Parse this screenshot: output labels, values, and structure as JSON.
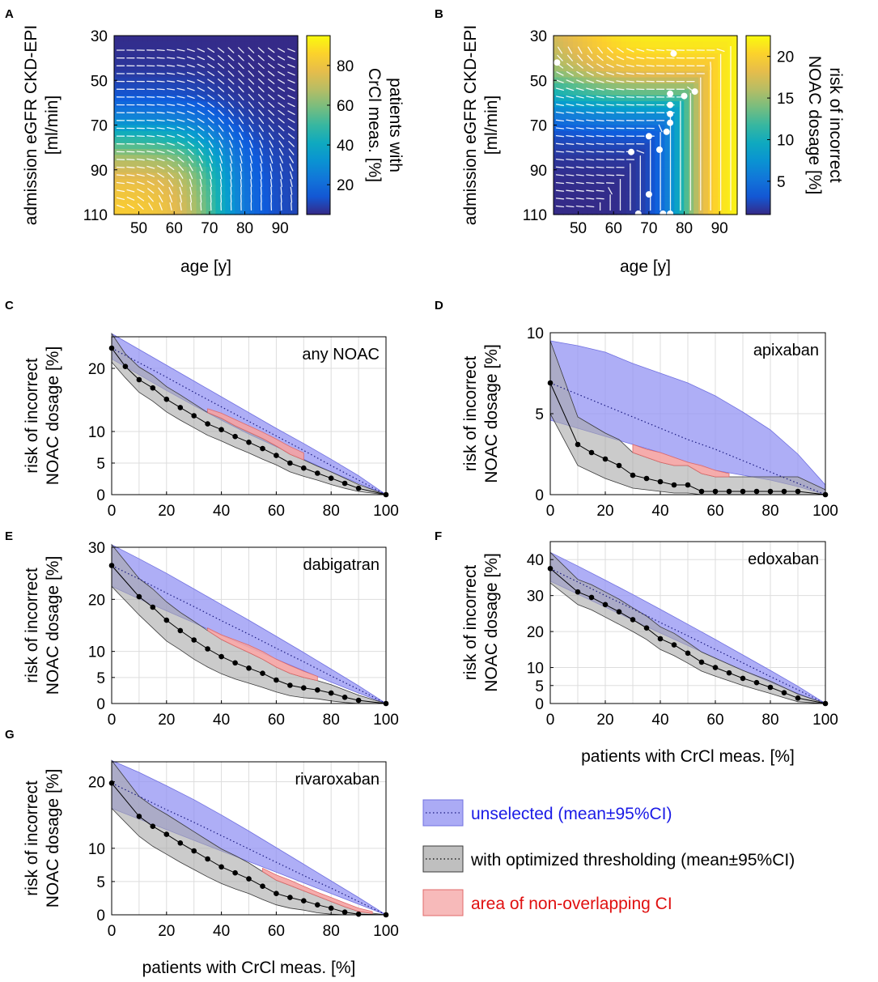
{
  "colors": {
    "unselected_fill": "#8f8ff2",
    "unselected_edge": "#7070e0",
    "optimized_fill": "#a9a9a9",
    "optimized_edge": "#3a3a3a",
    "nonoverlap_fill": "#f4a3a3",
    "nonoverlap_edge": "#e06a6a",
    "legend_unselected_text": "#1a1ae6",
    "legend_nonoverlap_text": "#e01010",
    "grid": "#dddddd",
    "contour": "#ffffff"
  },
  "legend": {
    "unselected": "unselected (mean±95%CI)",
    "optimized": "with optimized thresholding (mean±95%CI)",
    "nonoverlap": "area of non-overlapping CI"
  },
  "chart_data": [
    {
      "id": "A",
      "panel_letter": "A",
      "type": "heatmap",
      "title": "",
      "xlabel": "age [y]",
      "ylabel_lines": [
        "admission eGFR CKD-EPI",
        "[ml/min]"
      ],
      "colorbar_label_lines": [
        "patients with",
        "CrCl meas. [%]"
      ],
      "xlim": [
        43,
        95
      ],
      "ylim": [
        110,
        30
      ],
      "xticks": [
        50,
        60,
        70,
        80,
        90
      ],
      "yticks": [
        30,
        50,
        70,
        90,
        110
      ],
      "cbar_range": [
        5,
        95
      ],
      "cbar_ticks": [
        20,
        40,
        60,
        80
      ],
      "description_values": {
        "low_age_high_egfr": 90,
        "high_age_low_egfr": 8,
        "transition_age": 75,
        "transition_egfr": 75
      }
    },
    {
      "id": "B",
      "panel_letter": "B",
      "type": "heatmap",
      "title": "",
      "xlabel": "age [y]",
      "ylabel_lines": [
        "admission eGFR CKD-EPI",
        "[ml/min]"
      ],
      "colorbar_label_lines": [
        "risk of incorrect",
        "NOAC dosage [%]"
      ],
      "xlim": [
        43,
        95
      ],
      "ylim": [
        110,
        30
      ],
      "xticks": [
        50,
        60,
        70,
        80,
        90
      ],
      "yticks": [
        30,
        50,
        70,
        90,
        110
      ],
      "cbar_range": [
        1,
        22.5
      ],
      "cbar_ticks": [
        5,
        10,
        15,
        20
      ],
      "threshold_points": [
        [
          44,
          42
        ],
        [
          77,
          38
        ],
        [
          76,
          56
        ],
        [
          80,
          57
        ],
        [
          83,
          55
        ],
        [
          76,
          61
        ],
        [
          76,
          65
        ],
        [
          76,
          69
        ],
        [
          75,
          73
        ],
        [
          70,
          75
        ],
        [
          73,
          81
        ],
        [
          65,
          82
        ],
        [
          70,
          101
        ],
        [
          67,
          110
        ],
        [
          76,
          110
        ],
        [
          74,
          110
        ]
      ]
    },
    {
      "id": "C",
      "panel_letter": "C",
      "type": "line",
      "title": "any NOAC",
      "ylabel_lines": [
        "risk of incorrect",
        "NOAC dosage [%]"
      ],
      "xlabel": "",
      "xlim": [
        0,
        100
      ],
      "ylim": [
        0,
        25
      ],
      "xticks": [
        0,
        20,
        40,
        60,
        80,
        100
      ],
      "yticks": [
        0,
        5,
        10,
        20
      ],
      "x": [
        0,
        10,
        20,
        30,
        40,
        50,
        60,
        70,
        80,
        90,
        100
      ],
      "unselected_mean": [
        23.2,
        20.9,
        18.6,
        16.2,
        13.9,
        11.6,
        9.3,
        7.0,
        4.6,
        2.3,
        0
      ],
      "unselected_lower": [
        21.5,
        19.0,
        16.5,
        14.1,
        11.8,
        9.6,
        7.6,
        5.6,
        3.6,
        1.8,
        0
      ],
      "unselected_upper": [
        25.5,
        23.0,
        20.5,
        18.0,
        15.5,
        13.0,
        10.5,
        8.1,
        5.6,
        3.0,
        0
      ],
      "optimized_x": [
        0,
        5,
        10,
        15,
        20,
        25,
        30,
        35,
        40,
        45,
        50,
        55,
        60,
        65,
        70,
        75,
        80,
        85,
        90,
        100
      ],
      "optimized_mean": [
        23.2,
        20.3,
        18.2,
        16.9,
        15.1,
        13.8,
        12.5,
        11.2,
        10.3,
        9.2,
        8.3,
        7.3,
        6.2,
        5.0,
        4.2,
        3.4,
        2.6,
        1.8,
        1.0,
        0
      ],
      "optimized_lower": [
        21.0,
        18.5,
        16.2,
        14.8,
        13.1,
        11.8,
        10.6,
        9.4,
        8.5,
        7.5,
        6.6,
        5.6,
        4.7,
        3.6,
        2.9,
        2.3,
        1.6,
        1.0,
        0.5,
        0
      ],
      "optimized_upper": [
        25.5,
        22.3,
        20.2,
        18.9,
        17.1,
        15.8,
        14.4,
        13.0,
        12.1,
        10.9,
        9.9,
        8.9,
        7.7,
        6.4,
        5.5,
        4.5,
        3.6,
        2.6,
        1.6,
        0
      ],
      "nonoverlap_x": [
        35,
        40,
        45,
        50,
        55,
        60,
        65,
        70
      ],
      "nonoverlap_lower": [
        13.0,
        12.1,
        10.9,
        9.9,
        8.9,
        7.7,
        6.4,
        5.5
      ],
      "nonoverlap_upper": [
        13.6,
        12.9,
        11.9,
        10.9,
        9.9,
        8.8,
        7.6,
        6.6
      ]
    },
    {
      "id": "D",
      "panel_letter": "D",
      "type": "line",
      "title": "apixaban",
      "ylabel_lines": [
        "risk of incorrect",
        "NOAC dosage [%]"
      ],
      "xlabel": "",
      "xlim": [
        0,
        100
      ],
      "ylim": [
        0,
        10
      ],
      "xticks": [
        0,
        20,
        40,
        60,
        80,
        100
      ],
      "yticks": [
        0,
        5,
        10
      ],
      "x": [
        0,
        10,
        20,
        30,
        40,
        50,
        60,
        70,
        80,
        90,
        100
      ],
      "unselected_mean": [
        6.9,
        6.2,
        5.5,
        4.8,
        4.1,
        3.4,
        2.8,
        2.1,
        1.4,
        0.7,
        0
      ],
      "unselected_lower": [
        4.6,
        4.1,
        3.6,
        3.1,
        2.6,
        2.0,
        1.5,
        1.2,
        0.9,
        0.5,
        0
      ],
      "unselected_upper": [
        9.5,
        9.2,
        8.8,
        8.1,
        7.5,
        6.9,
        6.1,
        5.1,
        4.0,
        2.5,
        0.6
      ],
      "optimized_x": [
        0,
        10,
        15,
        20,
        25,
        30,
        35,
        40,
        45,
        50,
        55,
        60,
        65,
        70,
        75,
        80,
        85,
        90,
        100
      ],
      "optimized_mean": [
        6.9,
        3.1,
        2.6,
        2.2,
        1.8,
        1.2,
        1.0,
        0.8,
        0.6,
        0.6,
        0.2,
        0.2,
        0.2,
        0.2,
        0.2,
        0.2,
        0.2,
        0.2,
        0
      ],
      "optimized_lower": [
        5.0,
        1.8,
        1.4,
        1.0,
        0.7,
        0.4,
        0.3,
        0.2,
        0.1,
        0.1,
        0.0,
        0.0,
        0.0,
        0.0,
        0.0,
        0.0,
        0.0,
        0.0,
        0
      ],
      "optimized_upper": [
        9.5,
        4.8,
        4.3,
        3.8,
        3.4,
        2.6,
        2.3,
        2.0,
        1.8,
        1.8,
        1.3,
        1.1,
        1.1,
        1.1,
        1.1,
        1.1,
        1.1,
        1.1,
        0.3
      ],
      "nonoverlap_x": [
        30,
        35,
        40,
        45,
        50,
        55,
        60,
        65
      ],
      "nonoverlap_lower": [
        2.6,
        2.3,
        2.0,
        1.8,
        1.8,
        1.3,
        1.1,
        1.1
      ],
      "nonoverlap_upper": [
        3.1,
        2.8,
        2.6,
        2.3,
        2.0,
        1.8,
        1.5,
        1.3
      ]
    },
    {
      "id": "E",
      "panel_letter": "E",
      "type": "line",
      "title": "dabigatran",
      "ylabel_lines": [
        "risk of incorrect",
        "NOAC dosage [%]"
      ],
      "xlabel": "",
      "xlim": [
        0,
        100
      ],
      "ylim": [
        0,
        30
      ],
      "xticks": [
        0,
        20,
        40,
        60,
        80,
        100
      ],
      "yticks": [
        0,
        5,
        10,
        20,
        30
      ],
      "x": [
        0,
        10,
        20,
        30,
        40,
        50,
        60,
        70,
        80,
        90,
        100
      ],
      "unselected_mean": [
        26.5,
        23.9,
        21.2,
        18.6,
        15.9,
        13.3,
        10.6,
        8.0,
        5.3,
        2.7,
        0
      ],
      "unselected_lower": [
        22.5,
        20.1,
        17.8,
        15.5,
        13.1,
        10.8,
        8.5,
        6.3,
        4.1,
        2.0,
        0
      ],
      "unselected_upper": [
        30.5,
        27.8,
        25.0,
        22.0,
        19.0,
        16.0,
        12.9,
        9.8,
        6.6,
        3.4,
        0
      ],
      "optimized_x": [
        0,
        10,
        15,
        20,
        25,
        30,
        35,
        40,
        45,
        50,
        55,
        60,
        65,
        70,
        75,
        80,
        85,
        90,
        100
      ],
      "optimized_mean": [
        26.5,
        20.5,
        18.5,
        16.0,
        14.0,
        12.2,
        10.5,
        9.0,
        7.8,
        6.8,
        5.8,
        4.5,
        3.5,
        3.0,
        2.6,
        2.0,
        1.2,
        0.6,
        0
      ],
      "optimized_lower": [
        22.5,
        17.0,
        14.5,
        12.0,
        10.3,
        8.5,
        7.0,
        5.7,
        4.7,
        3.9,
        3.1,
        2.2,
        1.5,
        1.1,
        0.9,
        0.5,
        0.2,
        0.0,
        0
      ],
      "optimized_upper": [
        30.5,
        24.0,
        22.0,
        19.5,
        17.5,
        15.8,
        14.0,
        12.3,
        11.0,
        9.8,
        8.5,
        7.0,
        5.8,
        5.0,
        4.4,
        3.6,
        2.6,
        1.6,
        0
      ],
      "nonoverlap_x": [
        35,
        40,
        45,
        50,
        55,
        60,
        65,
        70,
        75
      ],
      "nonoverlap_lower": [
        14.0,
        12.3,
        11.0,
        9.8,
        8.5,
        7.0,
        5.8,
        5.0,
        4.4
      ],
      "nonoverlap_upper": [
        14.5,
        13.2,
        12.2,
        11.2,
        10.0,
        8.5,
        7.3,
        6.2,
        5.2
      ]
    },
    {
      "id": "F",
      "panel_letter": "F",
      "type": "line",
      "title": "edoxaban",
      "ylabel_lines": [
        "risk of incorrect",
        "NOAC dosage [%]"
      ],
      "xlabel": "patients with CrCl meas. [%]",
      "xlim": [
        0,
        100
      ],
      "ylim": [
        0,
        45
      ],
      "xticks": [
        0,
        20,
        40,
        60,
        80,
        100
      ],
      "yticks": [
        0,
        5,
        10,
        20,
        30,
        40
      ],
      "x": [
        0,
        10,
        20,
        30,
        40,
        50,
        60,
        70,
        80,
        90,
        100
      ],
      "unselected_mean": [
        37.5,
        33.8,
        30.0,
        26.3,
        22.5,
        18.8,
        15.0,
        11.3,
        7.5,
        3.8,
        0
      ],
      "unselected_lower": [
        34.0,
        30.4,
        26.8,
        23.2,
        19.6,
        16.1,
        12.6,
        9.2,
        5.9,
        2.8,
        0
      ],
      "unselected_upper": [
        42.0,
        38.2,
        34.3,
        30.3,
        26.2,
        22.0,
        17.8,
        13.5,
        9.2,
        4.8,
        0
      ],
      "optimized_x": [
        0,
        10,
        15,
        20,
        25,
        30,
        35,
        40,
        45,
        50,
        55,
        60,
        65,
        70,
        75,
        80,
        85,
        90,
        100
      ],
      "optimized_mean": [
        37.5,
        31.0,
        29.5,
        27.5,
        25.5,
        23.3,
        21.0,
        18.0,
        16.3,
        14.0,
        11.5,
        10.0,
        8.5,
        7.0,
        5.8,
        4.5,
        3.0,
        1.5,
        0
      ],
      "optimized_lower": [
        33.5,
        27.5,
        26.0,
        24.0,
        22.0,
        20.0,
        17.8,
        15.0,
        13.3,
        11.2,
        9.0,
        7.6,
        6.3,
        5.0,
        3.9,
        2.8,
        1.6,
        0.5,
        0
      ],
      "optimized_upper": [
        42.0,
        34.5,
        33.0,
        31.0,
        29.0,
        26.6,
        24.3,
        21.3,
        19.5,
        17.0,
        14.3,
        12.6,
        10.9,
        9.2,
        7.7,
        6.2,
        4.4,
        2.6,
        0
      ]
    },
    {
      "id": "G",
      "panel_letter": "G",
      "type": "line",
      "title": "rivaroxaban",
      "ylabel_lines": [
        "risk of incorrect",
        "NOAC dosage [%]"
      ],
      "xlabel": "patients with CrCl meas. [%]",
      "xlim": [
        0,
        100
      ],
      "ylim": [
        0,
        23
      ],
      "xticks": [
        0,
        20,
        40,
        60,
        80,
        100
      ],
      "yticks": [
        0,
        5,
        10,
        20
      ],
      "x": [
        0,
        10,
        20,
        30,
        40,
        50,
        60,
        70,
        80,
        90,
        100
      ],
      "unselected_mean": [
        19.8,
        17.8,
        15.8,
        13.9,
        11.9,
        9.9,
        7.9,
        5.9,
        4.0,
        2.0,
        0
      ],
      "unselected_lower": [
        16.0,
        14.4,
        12.8,
        11.2,
        9.6,
        8.0,
        6.4,
        4.8,
        3.2,
        1.6,
        0
      ],
      "unselected_upper": [
        23.2,
        21.4,
        19.4,
        17.3,
        15.0,
        12.6,
        10.1,
        7.6,
        5.1,
        2.6,
        0
      ],
      "optimized_x": [
        0,
        10,
        15,
        20,
        25,
        30,
        35,
        40,
        45,
        50,
        55,
        60,
        65,
        70,
        75,
        80,
        85,
        90,
        100
      ],
      "optimized_mean": [
        19.8,
        14.8,
        13.3,
        12.1,
        10.8,
        9.6,
        8.4,
        7.2,
        6.3,
        5.4,
        4.3,
        3.2,
        2.6,
        2.1,
        1.5,
        1.0,
        0.4,
        0.1,
        0
      ],
      "optimized_lower": [
        16.0,
        11.8,
        10.3,
        9.1,
        7.9,
        6.8,
        5.7,
        4.7,
        3.9,
        3.2,
        2.3,
        1.5,
        1.0,
        0.7,
        0.3,
        0.1,
        0.0,
        0.0,
        0
      ],
      "optimized_upper": [
        23.2,
        17.8,
        16.3,
        15.1,
        13.8,
        12.5,
        11.2,
        9.9,
        8.9,
        7.8,
        6.5,
        5.2,
        4.4,
        3.6,
        2.8,
        2.0,
        1.2,
        0.5,
        0
      ],
      "nonoverlap_x": [
        55,
        60,
        65,
        70,
        75,
        80,
        85,
        90,
        95
      ],
      "nonoverlap_lower": [
        6.5,
        5.2,
        4.4,
        3.6,
        2.8,
        2.0,
        1.2,
        0.5,
        0.2
      ],
      "nonoverlap_upper": [
        7.0,
        6.0,
        5.2,
        4.3,
        3.4,
        2.6,
        1.8,
        1.0,
        0.5
      ]
    }
  ]
}
